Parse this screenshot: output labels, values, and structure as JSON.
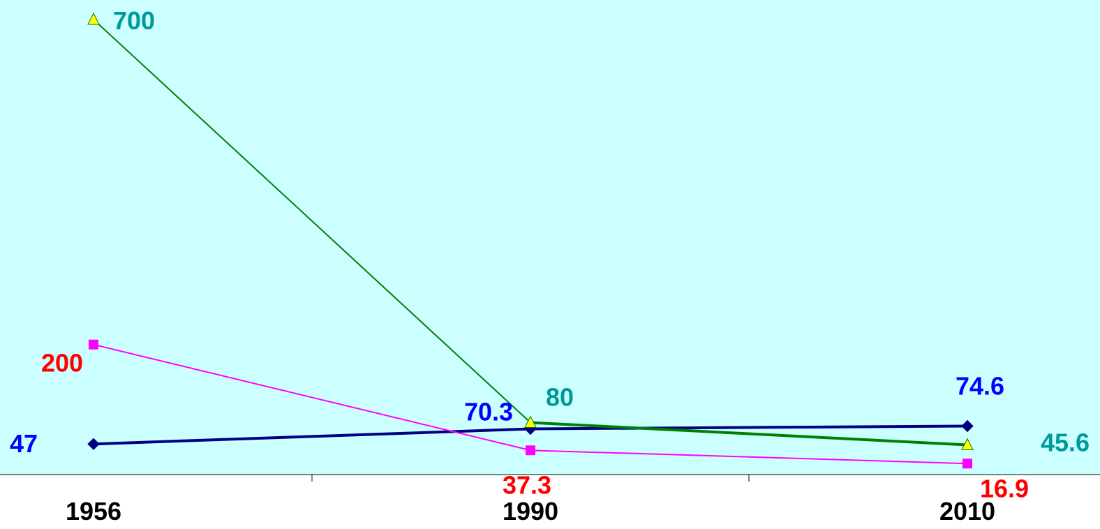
{
  "colors": {
    "plot_background": "#ccffff",
    "axis": "#000000",
    "tick_label": "#000000"
  },
  "chart_data": {
    "type": "line",
    "title": "",
    "xlabel": "",
    "ylabel": "",
    "categories": [
      "1956",
      "1990",
      "2010"
    ],
    "ylim": [
      0,
      730
    ],
    "grid": false,
    "legend": "none",
    "series": [
      {
        "values": [
          47,
          70.3,
          74.6
        ],
        "labels": [
          "47",
          "70.3",
          "74.6"
        ],
        "color": "#000080",
        "label_color": "#0000ff",
        "marker": "diamond",
        "marker_fill": "#000080",
        "segment_widths": [
          4,
          4
        ]
      },
      {
        "values": [
          200,
          37.3,
          16.9
        ],
        "labels": [
          "200",
          "37.3",
          "16.9"
        ],
        "color": "#ff00ff",
        "label_color": "#ff0000",
        "marker": "square",
        "marker_fill": "#ff00ff",
        "segment_widths": [
          2,
          2
        ]
      },
      {
        "values": [
          700,
          80,
          45.6
        ],
        "labels": [
          "700",
          "80",
          "45.6"
        ],
        "color": "#008000",
        "label_color": "#009999",
        "marker": "triangle",
        "marker_fill": "#ffff00",
        "segment_widths": [
          2,
          4
        ]
      }
    ]
  }
}
